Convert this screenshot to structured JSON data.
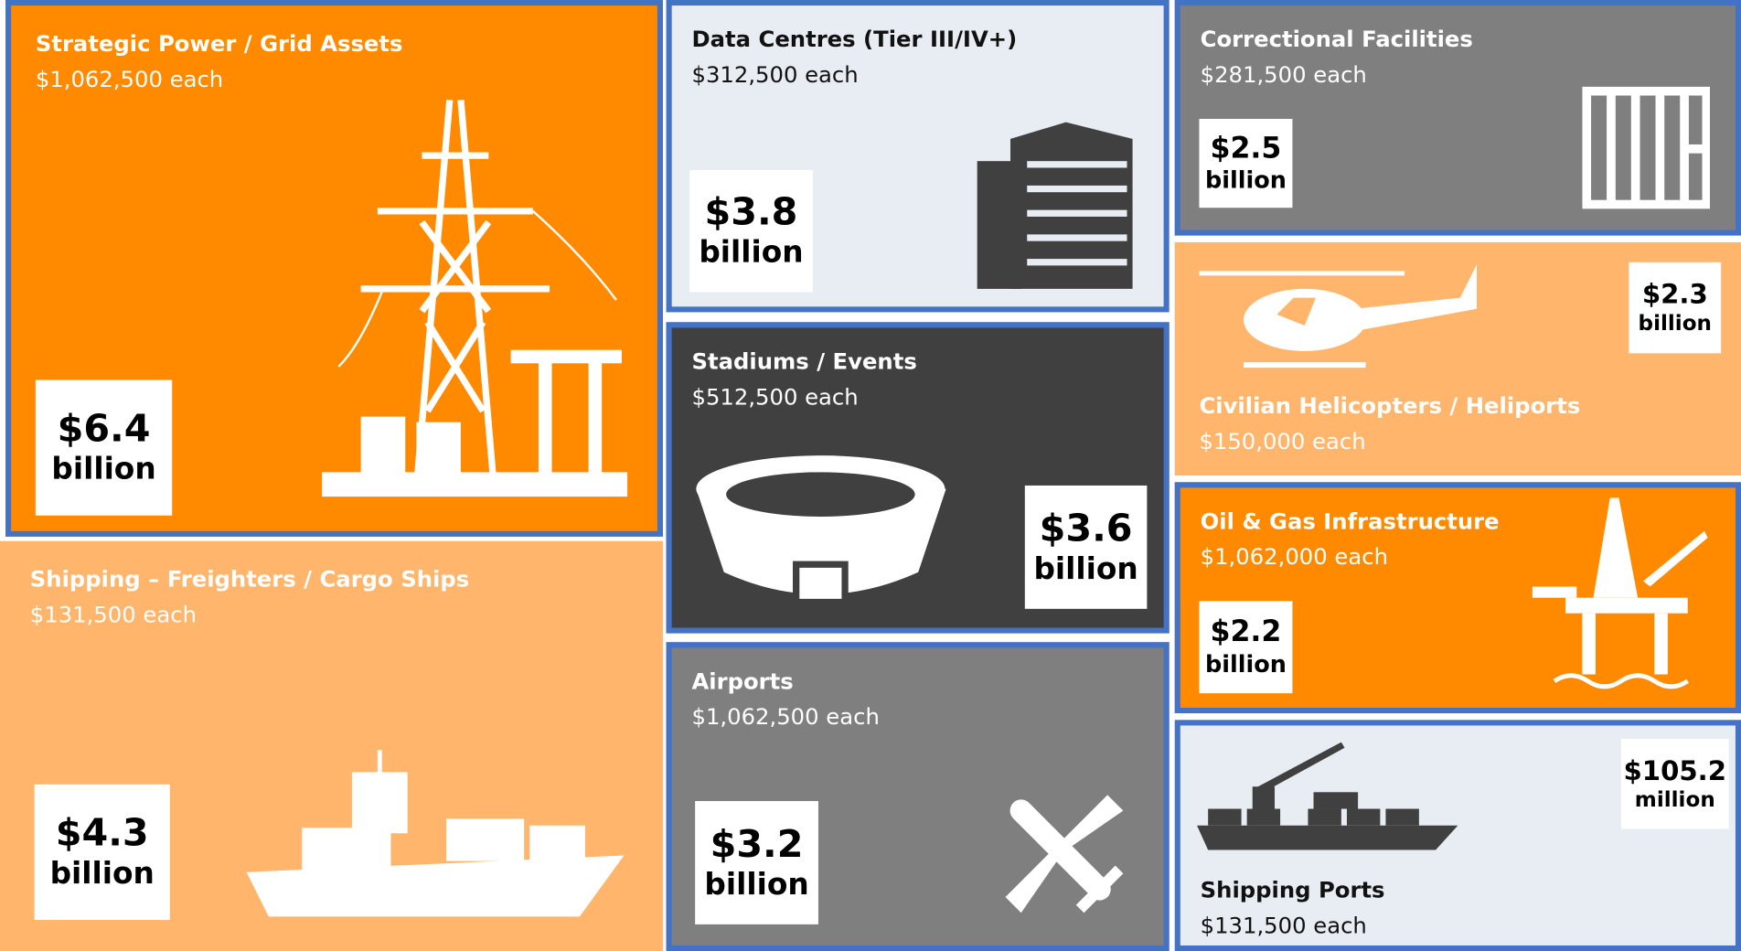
{
  "tiles": [
    {
      "title": "Strategic Power / Grid Assets",
      "price": "$1,062,500 each",
      "amount": "$6.4",
      "unit": "billion"
    },
    {
      "title": "Shipping – Freighters / Cargo Ships",
      "price": "$131,500 each",
      "amount": "$4.3",
      "unit": "billion"
    },
    {
      "title": "Data Centres (Tier III/IV+)",
      "price": "$312,500 each",
      "amount": "$3.8",
      "unit": "billion"
    },
    {
      "title": "Stadiums / Events",
      "price": "$512,500 each",
      "amount": "$3.6",
      "unit": "billion"
    },
    {
      "title": "Airports",
      "price": "$1,062,500 each",
      "amount": "$3.2",
      "unit": "billion"
    },
    {
      "title": "Correctional Facilities",
      "price": "$281,500 each",
      "amount": "$2.5",
      "unit": "billion"
    },
    {
      "title": "Civilian Helicopters / Heliports",
      "price": "$150,000 each",
      "amount": "$2.3",
      "unit": "billion"
    },
    {
      "title": "Oil & Gas Infrastructure",
      "price": "$1,062,000 each",
      "amount": "$2.2",
      "unit": "billion"
    },
    {
      "title": "Shipping Ports",
      "price": "$131,500 each",
      "amount": "$105.2",
      "unit": "million"
    }
  ]
}
